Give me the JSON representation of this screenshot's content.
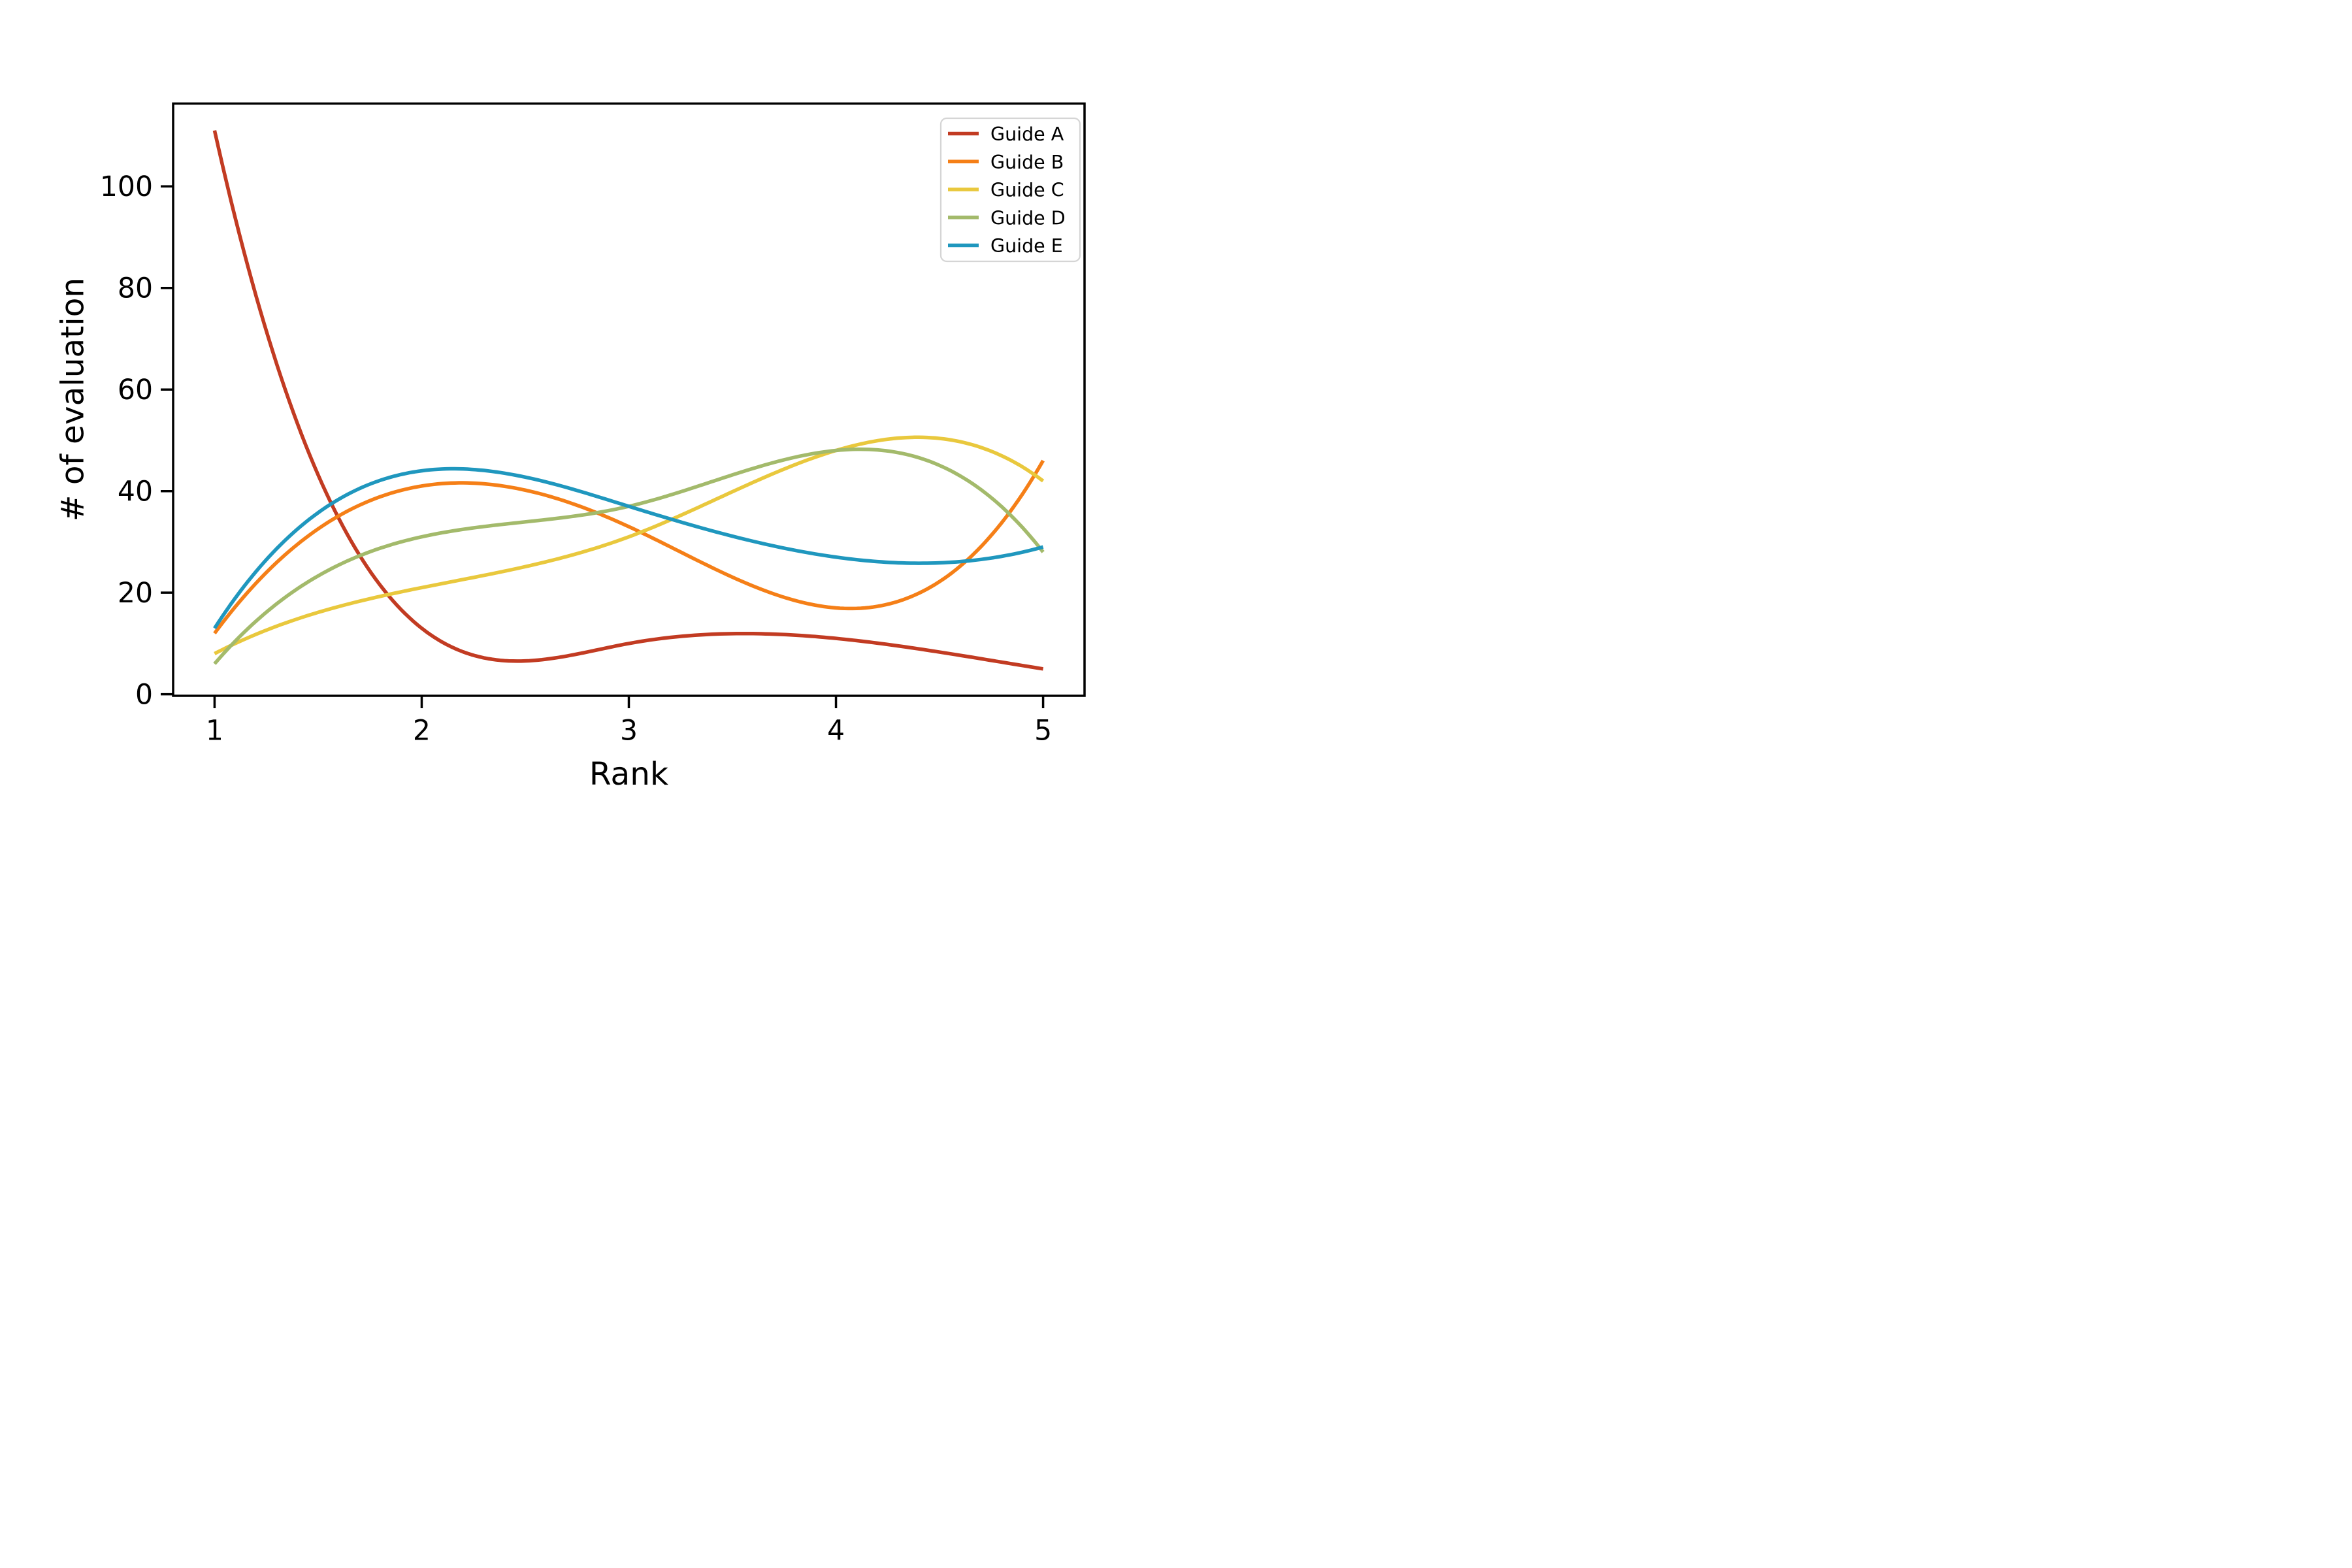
{
  "chart_data": {
    "type": "line",
    "title": "",
    "xlabel": "Rank",
    "ylabel": "# of evaluation",
    "x": [
      1,
      2,
      3,
      4,
      5
    ],
    "xticks": [
      "1",
      "2",
      "3",
      "4",
      "5"
    ],
    "yticks": [
      "0",
      "20",
      "40",
      "60",
      "80",
      "100"
    ],
    "ytick_values": [
      0,
      20,
      40,
      60,
      80,
      100
    ],
    "xlim": [
      0.8,
      5.2
    ],
    "ylim": [
      -0.3,
      116.3
    ],
    "grid": "off",
    "smoothing": "cubic-spline-not-a-knot",
    "legend_position": "upper right",
    "series": [
      {
        "name": "Guide A",
        "color": "#c23b22",
        "values": [
          111,
          13,
          10,
          11,
          5
        ]
      },
      {
        "name": "Guide B",
        "color": "#f57f17",
        "values": [
          12,
          41,
          33,
          17,
          46
        ]
      },
      {
        "name": "Guide C",
        "color": "#e9c83d",
        "values": [
          8,
          21,
          31,
          48,
          42
        ]
      },
      {
        "name": "Guide D",
        "color": "#a3ba6b",
        "values": [
          6,
          31,
          37,
          48,
          28
        ]
      },
      {
        "name": "Guide E",
        "color": "#1f97be",
        "values": [
          13,
          44,
          37,
          27,
          29
        ]
      }
    ],
    "line_width": 11,
    "colors": {
      "axes": "#000000",
      "background": "#ffffff",
      "legend_border": "#d5d5d5"
    }
  }
}
